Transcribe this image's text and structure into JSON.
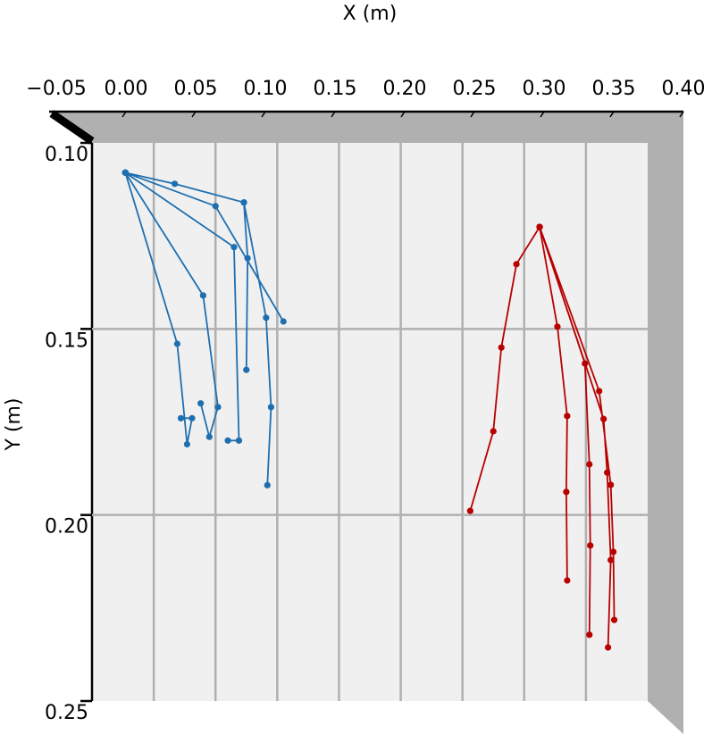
{
  "chart_data": {
    "type": "line",
    "xlabel": "X (m)",
    "ylabel": "Y (m)",
    "xlim": [
      -0.05,
      0.4
    ],
    "ylim": [
      0.1,
      0.25
    ],
    "y_inverted": true,
    "grid": true,
    "xticks": [
      {
        "value": -0.05,
        "label": "−0.05"
      },
      {
        "value": 0,
        "label": "0.00"
      },
      {
        "value": 0.05,
        "label": "0.05"
      },
      {
        "value": 0.1,
        "label": "0.10"
      },
      {
        "value": 0.15,
        "label": "0.15"
      },
      {
        "value": 0.2,
        "label": "0.20"
      },
      {
        "value": 0.25,
        "label": "0.25"
      },
      {
        "value": 0.3,
        "label": "0.30"
      },
      {
        "value": 0.35,
        "label": "0.35"
      },
      {
        "value": 0.4,
        "label": "0.40"
      }
    ],
    "yticks": [
      {
        "value": 0.1,
        "label": "0.10"
      },
      {
        "value": 0.15,
        "label": "0.15"
      },
      {
        "value": 0.2,
        "label": "0.20"
      },
      {
        "value": 0.25,
        "label": "0.25"
      }
    ],
    "series": [
      {
        "color": "#1f6fb0",
        "x": [
          -0.023,
          0.017,
          0.073,
          0.091,
          0.095,
          0.092,
          null,
          -0.023,
          0.05,
          0.105,
          null,
          -0.023,
          0.065,
          0.069,
          0.06,
          null,
          -0.023,
          0.04,
          0.052,
          0.045,
          0.038,
          null,
          -0.023,
          0.019,
          0.027,
          0.031,
          0.022,
          null,
          0.073,
          0.076,
          0.075
        ],
        "y": [
          0.108,
          0.111,
          0.116,
          0.147,
          0.171,
          0.192,
          null,
          0.108,
          0.117,
          0.148,
          null,
          0.108,
          0.128,
          0.18,
          0.18,
          null,
          0.108,
          0.141,
          0.171,
          0.179,
          0.17,
          null,
          0.108,
          0.154,
          0.181,
          0.174,
          0.174,
          null,
          0.116,
          0.131,
          0.161
        ]
      },
      {
        "color": "#b80000",
        "x": [
          0.3125,
          0.2937,
          0.2815,
          0.275,
          0.2563,
          null,
          0.3125,
          0.3269,
          0.3348,
          0.3341,
          0.3348,
          null,
          0.3125,
          0.3492,
          0.3528,
          0.3535,
          0.3528,
          null,
          0.3125,
          0.3607,
          0.3701,
          0.3722,
          0.3729,
          null,
          0.3125,
          0.3643,
          0.3672,
          0.3701,
          0.3679
        ],
        "y": [
          0.1226,
          0.1326,
          0.155,
          0.1775,
          0.1989,
          null,
          0.1226,
          0.1494,
          0.1734,
          0.1938,
          0.2176,
          null,
          0.1226,
          0.1593,
          0.1864,
          0.2082,
          0.2322,
          null,
          0.1226,
          0.1667,
          0.1919,
          0.2099,
          0.2282,
          null,
          0.1226,
          0.1742,
          0.1886,
          0.2121,
          0.2356
        ]
      }
    ]
  }
}
